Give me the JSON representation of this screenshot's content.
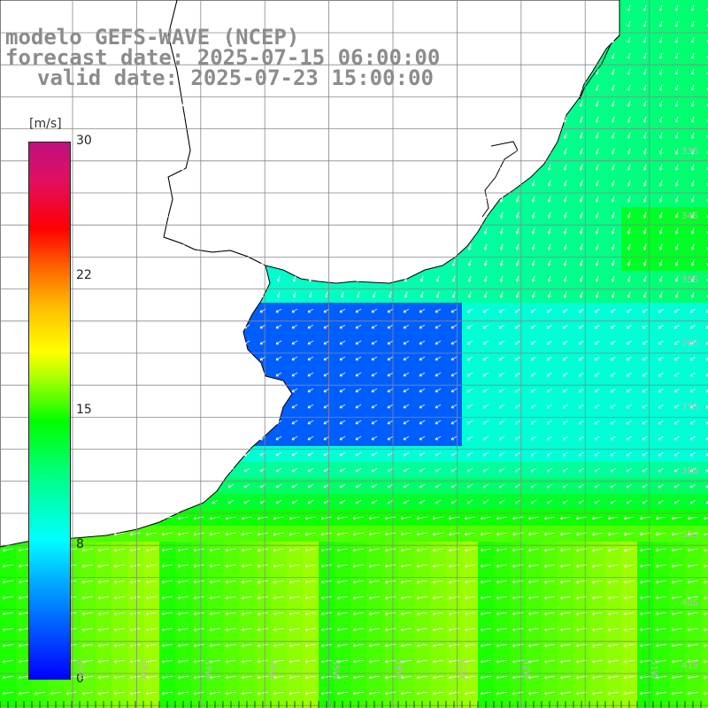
{
  "title": {
    "line1": "modelo GEFS-WAVE (NCEP)",
    "line2": "forecast date: 2025-07-15 06:00:00",
    "line3": "valid date: 2025-07-23 15:00:00"
  },
  "colorbar": {
    "units": "[m/s]",
    "labels": [
      "30",
      "22",
      "15",
      "8",
      "0"
    ],
    "min": 0,
    "max": 30
  },
  "lon_labels": [
    "59W",
    "58W",
    "57W",
    "56W",
    "55W",
    "54W",
    "53W",
    "52W",
    "51W"
  ],
  "lat_labels": [
    "33S",
    "34S",
    "35S",
    "36S",
    "37S",
    "38S",
    "39S",
    "40S",
    "41S"
  ],
  "colors": {
    "land": "#ffffff",
    "coast": "#000000",
    "grid": "#888888",
    "arrow": "#ffffff"
  }
}
